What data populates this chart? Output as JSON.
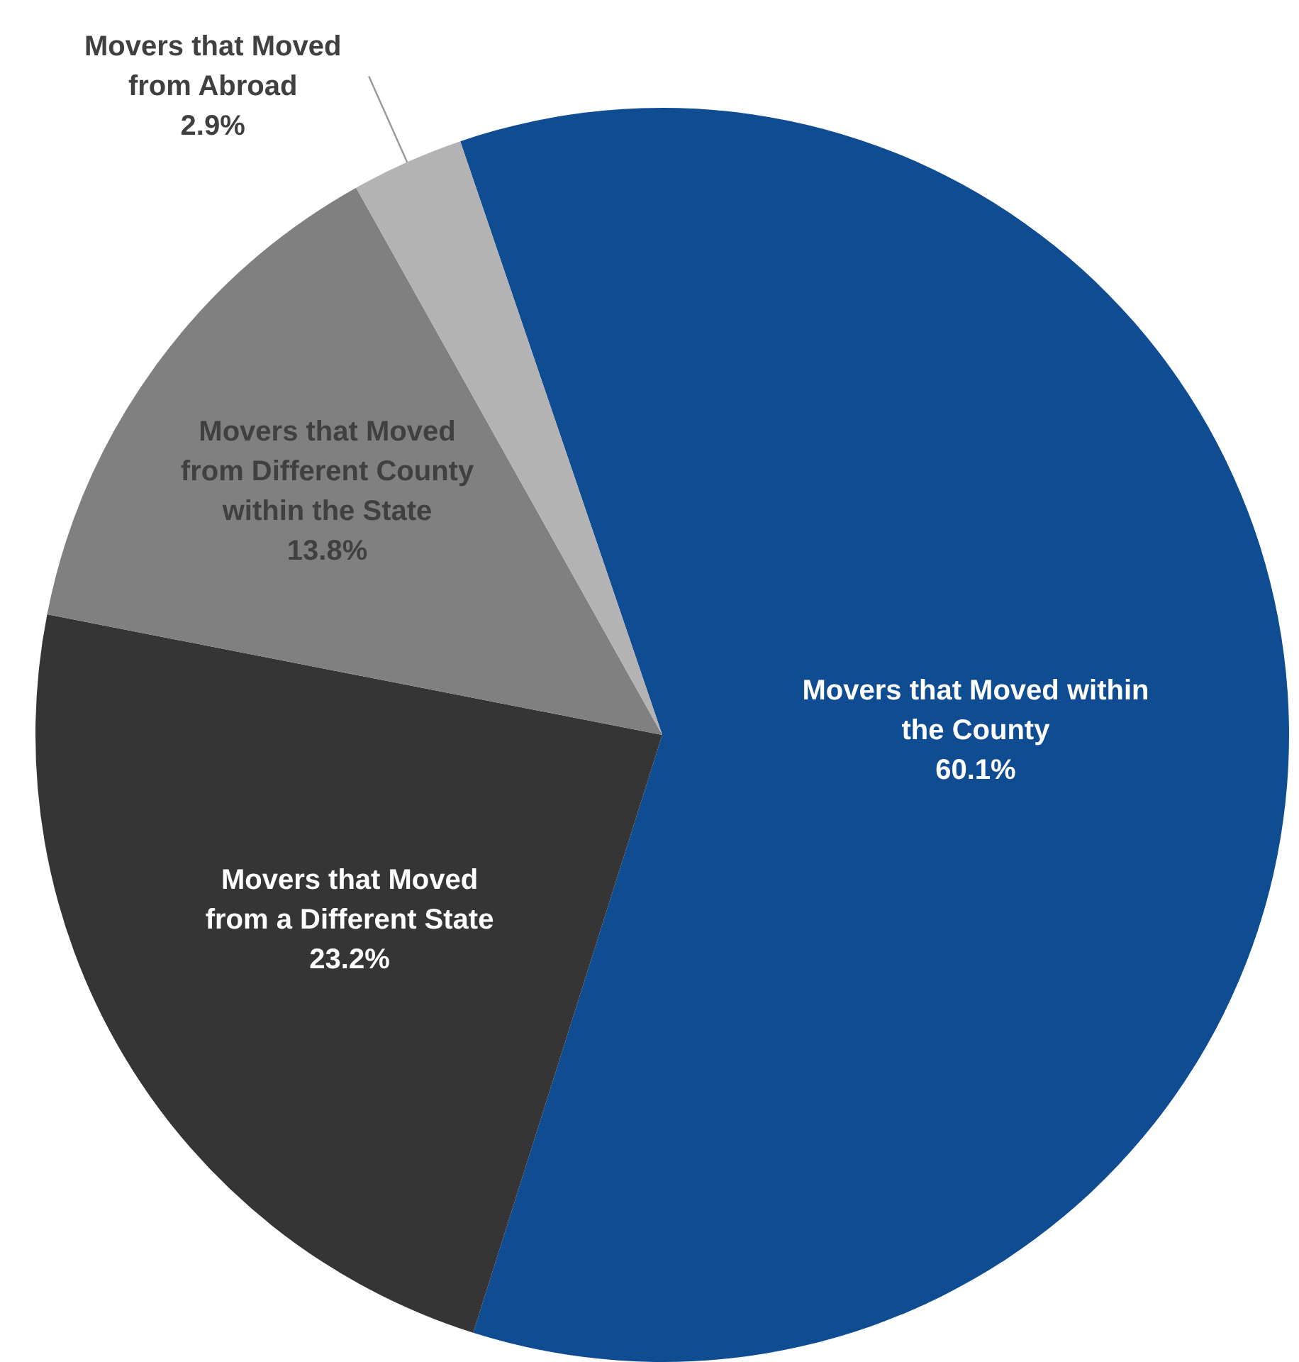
{
  "chart_data": {
    "type": "pie",
    "categories": [
      "Movers that Moved within the County",
      "Movers that Moved from a Different State",
      "Movers that Moved from Different County within the State",
      "Movers that Moved from Abroad"
    ],
    "values": [
      60.1,
      23.2,
      13.8,
      2.9
    ],
    "colors": [
      "#0f4c91",
      "#353535",
      "#808080",
      "#b3b3b3"
    ],
    "value_labels": [
      "60.1%",
      "23.2%",
      "13.8%",
      "2.9%"
    ],
    "legend": false
  }
}
